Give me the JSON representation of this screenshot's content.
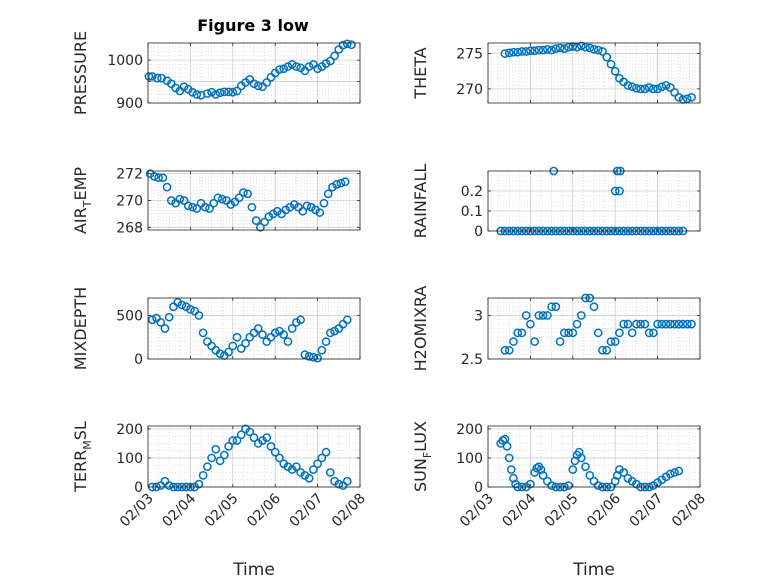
{
  "figure": {
    "title": "Figure 3 low"
  },
  "chart_data": [
    {
      "type": "scatter",
      "id": "pressure",
      "title": "Figure 3 low",
      "ylabel": "PRESSURE",
      "ylabel_parts": [
        "PRESSURE"
      ],
      "xlabel": "",
      "ylim": [
        900,
        1040
      ],
      "xlim": [
        0,
        5
      ],
      "yticks": [
        900,
        950,
        1000
      ],
      "yticklabels": [
        "900",
        "",
        "1000"
      ],
      "x": [
        0.02,
        0.1,
        0.22,
        0.32,
        0.45,
        0.55,
        0.65,
        0.75,
        0.85,
        0.95,
        1.05,
        1.15,
        1.25,
        1.4,
        1.5,
        1.6,
        1.7,
        1.8,
        1.9,
        2.0,
        2.1,
        2.2,
        2.3,
        2.4,
        2.5,
        2.6,
        2.7,
        2.8,
        2.9,
        3.0,
        3.1,
        3.2,
        3.3,
        3.4,
        3.5,
        3.6,
        3.7,
        3.8,
        3.9,
        4.0,
        4.1,
        4.2,
        4.3,
        4.4,
        4.5,
        4.6,
        4.7,
        4.8
      ],
      "y": [
        962,
        962,
        958,
        958,
        952,
        945,
        935,
        928,
        938,
        932,
        925,
        920,
        918,
        922,
        925,
        920,
        924,
        926,
        926,
        925,
        928,
        940,
        948,
        955,
        945,
        940,
        938,
        948,
        960,
        970,
        978,
        980,
        985,
        990,
        985,
        982,
        975,
        985,
        990,
        980,
        985,
        992,
        998,
        1010,
        1025,
        1035,
        1038,
        1036
      ]
    },
    {
      "type": "scatter",
      "id": "theta",
      "title": "",
      "ylabel": "THETA",
      "ylabel_parts": [
        "THETA"
      ],
      "xlabel": "",
      "ylim": [
        268,
        276.5
      ],
      "xlim": [
        0,
        5
      ],
      "yticks": [
        270,
        275
      ],
      "yticklabels": [
        "270",
        "275"
      ],
      "x": [
        0.4,
        0.5,
        0.6,
        0.7,
        0.8,
        0.9,
        1.0,
        1.1,
        1.2,
        1.3,
        1.4,
        1.5,
        1.6,
        1.7,
        1.8,
        1.9,
        2.0,
        2.1,
        2.2,
        2.3,
        2.4,
        2.5,
        2.6,
        2.7,
        2.8,
        2.9,
        3.0,
        3.1,
        3.2,
        3.3,
        3.4,
        3.5,
        3.6,
        3.7,
        3.8,
        3.9,
        4.0,
        4.1,
        4.2,
        4.3,
        4.4,
        4.5,
        4.6,
        4.7,
        4.8
      ],
      "y": [
        275,
        275.1,
        275.2,
        275.2,
        275.3,
        275.3,
        275.4,
        275.4,
        275.5,
        275.5,
        275.6,
        275.5,
        275.7,
        275.8,
        275.7,
        275.9,
        276,
        275.9,
        276.1,
        275.9,
        275.8,
        275.6,
        275.5,
        275.3,
        274.5,
        273.5,
        272.5,
        271.5,
        271,
        270.5,
        270.3,
        270.1,
        270,
        270,
        270.2,
        270,
        270,
        270.3,
        270.5,
        270.2,
        269.5,
        268.8,
        268.5,
        268.6,
        268.8
      ]
    },
    {
      "type": "scatter",
      "id": "air_temp",
      "title": "",
      "ylabel": "AIR_TEMP",
      "ylabel_parts": [
        "AIR",
        "T",
        "EMP"
      ],
      "xlabel": "",
      "ylim": [
        267.8,
        272.2
      ],
      "xlim": [
        0,
        5
      ],
      "yticks": [
        268,
        270,
        272
      ],
      "yticklabels": [
        "268",
        "270",
        "272"
      ],
      "x": [
        0.05,
        0.15,
        0.25,
        0.35,
        0.45,
        0.55,
        0.65,
        0.75,
        0.85,
        0.95,
        1.05,
        1.15,
        1.25,
        1.35,
        1.45,
        1.55,
        1.65,
        1.75,
        1.85,
        1.95,
        2.05,
        2.15,
        2.25,
        2.35,
        2.45,
        2.55,
        2.65,
        2.75,
        2.85,
        2.95,
        3.05,
        3.15,
        3.25,
        3.35,
        3.45,
        3.55,
        3.65,
        3.75,
        3.85,
        3.95,
        4.05,
        4.15,
        4.25,
        4.35,
        4.45,
        4.55,
        4.65
      ],
      "y": [
        272,
        271.8,
        271.7,
        271.7,
        271,
        270,
        269.8,
        270.1,
        270,
        269.6,
        269.5,
        269.4,
        269.8,
        269.5,
        269.4,
        269.8,
        270.2,
        270.1,
        270,
        269.7,
        269.9,
        270.2,
        270.6,
        270.5,
        269.5,
        268.5,
        268,
        268.4,
        268.8,
        269,
        269.2,
        269,
        269.3,
        269.5,
        269.7,
        269.5,
        269.2,
        269.6,
        269.5,
        269.3,
        269.1,
        269.8,
        270.5,
        271,
        271.2,
        271.3,
        271.4
      ]
    },
    {
      "type": "scatter",
      "id": "rainfall",
      "title": "",
      "ylabel": "RAINFALL",
      "ylabel_parts": [
        "RAINFALL"
      ],
      "xlabel": "",
      "ylim": [
        0,
        0.3
      ],
      "xlim": [
        0,
        5
      ],
      "yticks": [
        0,
        0.1,
        0.2
      ],
      "yticklabels": [
        "0",
        "0.1",
        "0.2"
      ],
      "x": [
        0.3,
        0.4,
        0.5,
        0.6,
        0.7,
        0.8,
        0.9,
        1.0,
        1.1,
        1.2,
        1.3,
        1.4,
        1.5,
        1.6,
        1.7,
        1.8,
        1.9,
        2.0,
        2.1,
        2.2,
        2.3,
        2.4,
        2.5,
        2.6,
        2.7,
        2.8,
        2.9,
        3.0,
        3.1,
        3.2,
        3.3,
        3.4,
        3.5,
        3.6,
        3.7,
        3.8,
        3.9,
        4.0,
        4.1,
        4.2,
        4.3,
        4.4,
        4.5,
        4.6,
        1.55,
        3.05,
        3.1,
        3.0,
        3.12
      ],
      "y": [
        0,
        0,
        0,
        0,
        0,
        0,
        0,
        0,
        0,
        0,
        0,
        0,
        0,
        0,
        0,
        0,
        0,
        0,
        0,
        0,
        0,
        0,
        0,
        0,
        0,
        0,
        0,
        0,
        0,
        0,
        0,
        0,
        0,
        0,
        0,
        0,
        0,
        0,
        0,
        0,
        0,
        0,
        0,
        0,
        0.3,
        0.3,
        0.2,
        0.2,
        0.3
      ]
    },
    {
      "type": "scatter",
      "id": "mixdepth",
      "title": "",
      "ylabel": "MIXDEPTH",
      "ylabel_parts": [
        "MIXDEPTH"
      ],
      "xlabel": "",
      "ylim": [
        0,
        700
      ],
      "xlim": [
        0,
        5
      ],
      "yticks": [
        0,
        500
      ],
      "yticklabels": [
        "0",
        "500"
      ],
      "x": [
        0.1,
        0.2,
        0.3,
        0.4,
        0.5,
        0.6,
        0.7,
        0.8,
        0.9,
        1.0,
        1.1,
        1.2,
        1.3,
        1.4,
        1.5,
        1.6,
        1.7,
        1.8,
        1.9,
        2.0,
        2.1,
        2.2,
        2.3,
        2.4,
        2.5,
        2.6,
        2.7,
        2.8,
        2.9,
        3.0,
        3.1,
        3.2,
        3.3,
        3.4,
        3.5,
        3.6,
        3.7,
        3.8,
        3.9,
        4.0,
        4.1,
        4.2,
        4.3,
        4.4,
        4.5,
        4.6,
        4.7
      ],
      "y": [
        450,
        470,
        420,
        350,
        480,
        600,
        650,
        620,
        600,
        570,
        550,
        500,
        300,
        200,
        150,
        100,
        60,
        40,
        80,
        150,
        250,
        120,
        180,
        250,
        300,
        350,
        280,
        200,
        250,
        300,
        320,
        280,
        200,
        350,
        420,
        450,
        50,
        30,
        20,
        10,
        100,
        200,
        300,
        320,
        350,
        400,
        450
      ]
    },
    {
      "type": "scatter",
      "id": "h2omixra",
      "title": "",
      "ylabel": "H2OMIXRA",
      "ylabel_parts": [
        "H2OMIXRA"
      ],
      "xlabel": "",
      "ylim": [
        2.5,
        3.2
      ],
      "xlim": [
        0,
        5
      ],
      "yticks": [
        2.5,
        3
      ],
      "yticklabels": [
        "2.5",
        "3"
      ],
      "x": [
        0.4,
        0.5,
        0.6,
        0.7,
        0.8,
        0.9,
        1.0,
        1.1,
        1.2,
        1.3,
        1.4,
        1.5,
        1.6,
        1.7,
        1.8,
        1.9,
        2.0,
        2.1,
        2.2,
        2.3,
        2.4,
        2.5,
        2.6,
        2.7,
        2.8,
        2.9,
        3.0,
        3.1,
        3.2,
        3.3,
        3.4,
        3.5,
        3.6,
        3.7,
        3.8,
        3.9,
        4.0,
        4.1,
        4.2,
        4.3,
        4.4,
        4.5,
        4.6,
        4.7,
        4.8
      ],
      "y": [
        2.6,
        2.6,
        2.7,
        2.8,
        2.8,
        3.0,
        2.9,
        2.7,
        3.0,
        3.0,
        3.0,
        3.1,
        3.1,
        2.7,
        2.8,
        2.8,
        2.8,
        2.9,
        3.0,
        3.2,
        3.2,
        3.1,
        2.8,
        2.6,
        2.6,
        2.7,
        2.7,
        2.8,
        2.9,
        2.9,
        2.8,
        2.9,
        2.9,
        2.9,
        2.8,
        2.8,
        2.9,
        2.9,
        2.9,
        2.9,
        2.9,
        2.9,
        2.9,
        2.9,
        2.9
      ]
    },
    {
      "type": "scatter",
      "id": "terr_msl",
      "title": "",
      "ylabel": "TERR_MSL",
      "ylabel_parts": [
        "TERR",
        "M",
        "SL"
      ],
      "xlabel": "Time",
      "ylim": [
        0,
        210
      ],
      "xlim": [
        0,
        5
      ],
      "yticks": [
        0,
        100,
        200
      ],
      "yticklabels": [
        "0",
        "100",
        "200"
      ],
      "xticklabels": [
        "02/03",
        "02/04",
        "02/05",
        "02/06",
        "02/07",
        "02/08"
      ],
      "x": [
        0.1,
        0.2,
        0.3,
        0.4,
        0.5,
        0.6,
        0.7,
        0.8,
        0.9,
        1.0,
        1.1,
        1.2,
        1.3,
        1.4,
        1.5,
        1.6,
        1.7,
        1.8,
        1.9,
        2.0,
        2.1,
        2.2,
        2.3,
        2.4,
        2.5,
        2.6,
        2.7,
        2.8,
        2.9,
        3.0,
        3.1,
        3.2,
        3.3,
        3.4,
        3.5,
        3.6,
        3.7,
        3.8,
        3.9,
        4.0,
        4.1,
        4.2,
        4.3,
        4.4,
        4.5,
        4.6,
        4.7
      ],
      "y": [
        0,
        0,
        5,
        20,
        5,
        0,
        0,
        0,
        0,
        0,
        0,
        10,
        40,
        70,
        100,
        130,
        90,
        110,
        140,
        160,
        160,
        180,
        200,
        190,
        170,
        150,
        160,
        170,
        140,
        120,
        100,
        80,
        70,
        60,
        70,
        50,
        40,
        30,
        60,
        80,
        100,
        120,
        50,
        20,
        10,
        5,
        20
      ]
    },
    {
      "type": "scatter",
      "id": "sun_flux",
      "title": "",
      "ylabel": "SUN_FLUX",
      "ylabel_parts": [
        "SUN",
        "F",
        "LUX"
      ],
      "xlabel": "Time",
      "ylim": [
        0,
        210
      ],
      "xlim": [
        0,
        5
      ],
      "yticks": [
        0,
        100,
        200
      ],
      "yticklabels": [
        "0",
        "100",
        "200"
      ],
      "xticklabels": [
        "02/03",
        "02/04",
        "02/05",
        "02/06",
        "02/07",
        "02/08"
      ],
      "x": [
        0.3,
        0.35,
        0.4,
        0.45,
        0.5,
        0.55,
        0.6,
        0.65,
        0.7,
        0.8,
        0.9,
        1.0,
        1.1,
        1.15,
        1.2,
        1.25,
        1.3,
        1.4,
        1.5,
        1.6,
        1.7,
        1.8,
        1.9,
        2.0,
        2.05,
        2.1,
        2.15,
        2.2,
        2.3,
        2.4,
        2.5,
        2.6,
        2.7,
        2.8,
        2.9,
        3.0,
        3.05,
        3.1,
        3.2,
        3.3,
        3.4,
        3.5,
        3.6,
        3.7,
        3.8,
        3.9,
        4.0,
        4.1,
        4.2,
        4.3,
        4.4,
        4.5
      ],
      "y": [
        150,
        160,
        165,
        140,
        100,
        60,
        30,
        10,
        0,
        0,
        0,
        10,
        50,
        65,
        70,
        60,
        40,
        20,
        5,
        0,
        0,
        0,
        5,
        60,
        90,
        110,
        120,
        100,
        70,
        40,
        20,
        5,
        0,
        0,
        0,
        20,
        40,
        60,
        50,
        30,
        20,
        10,
        0,
        0,
        0,
        5,
        15,
        25,
        35,
        45,
        50,
        55
      ]
    }
  ]
}
